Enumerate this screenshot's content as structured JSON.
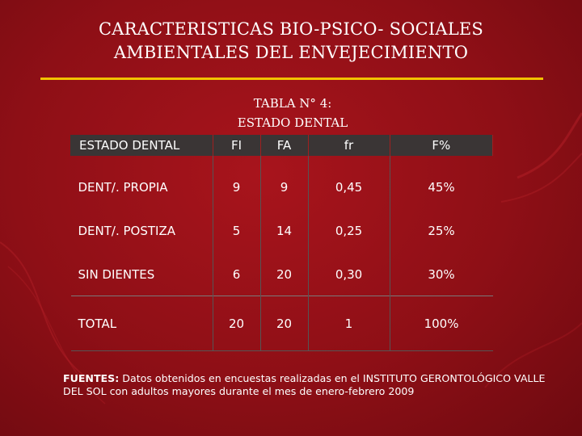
{
  "title": {
    "line1": "CARACTERISTICAS BIO-PSICO- SOCIALES",
    "line2": "AMBIENTALES DEL ENVEJECIMIENTO"
  },
  "caption": {
    "line1": "TABLA  N° 4:",
    "line2": "ESTADO DENTAL"
  },
  "table": {
    "headers": [
      "ESTADO DENTAL",
      "FI",
      "FA",
      "fr",
      "F%"
    ],
    "rows": [
      [
        "DENT/.  PROPIA",
        "9",
        "9",
        "0,45",
        "45%"
      ],
      [
        "DENT/. POSTIZA",
        "5",
        "14",
        "0,25",
        "25%"
      ],
      [
        "SIN DIENTES",
        "6",
        "20",
        "0,30",
        "30%"
      ]
    ],
    "total": [
      "TOTAL",
      "20",
      "20",
      "1",
      "100%"
    ]
  },
  "footer": {
    "label": "FUENTES:",
    "text": " Datos obtenidos en encuestas  realizadas en el INSTITUTO GERONTOLÓGICO VALLE DEL SOL con adultos mayores durante el mes de enero-febrero 2009"
  },
  "colors": {
    "background": "#9b121a",
    "accent_rule": "#f2c200",
    "header_fill": "#3a3535"
  }
}
